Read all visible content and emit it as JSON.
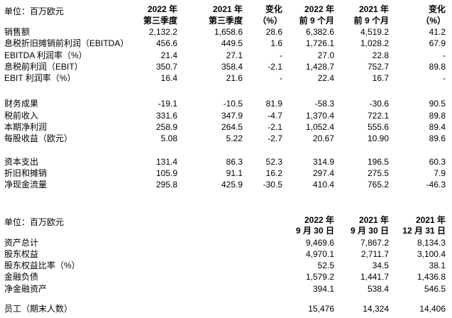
{
  "section1": {
    "unit_label": "单位：百万欧元",
    "headers": [
      "2022 年\n第三季度",
      "2021 年\n第三季度",
      "变化\n（%）",
      "2022 年\n前 9 个月",
      "2021 年\n前 9 个月",
      "变化\n（%）"
    ],
    "rows": [
      {
        "label": "销售额",
        "v": [
          "2,132.2",
          "1,658.6",
          "28.6",
          "6,382.6",
          "4,519.2",
          "41.2"
        ]
      },
      {
        "label": "息税折旧摊销前利润（EBITDA）",
        "v": [
          "456.6",
          "449.5",
          "1.6",
          "1,726.1",
          "1,028.2",
          "67.9"
        ]
      },
      {
        "label": "EBITDA 利润率（%）",
        "v": [
          "21.4",
          "27.1",
          "-",
          "27.0",
          "22.8",
          "-"
        ]
      },
      {
        "label": "息税前利润（EBIT）",
        "v": [
          "350.7",
          "358.4",
          "-2.1",
          "1,428.7",
          "752.7",
          "89.8"
        ]
      },
      {
        "label": "EBIT 利润率（%）",
        "v": [
          "16.4",
          "21.6",
          "-",
          "22.4",
          "16.7",
          "-"
        ]
      },
      {
        "label": "财务成果",
        "v": [
          "-19.1",
          "-10.5",
          "81.9",
          "-58.3",
          "-30.6",
          "90.5"
        ]
      },
      {
        "label": "税前收入",
        "v": [
          "331.6",
          "347.9",
          "-4.7",
          "1,370.4",
          "722.1",
          "89.8"
        ]
      },
      {
        "label": "本期净利润",
        "v": [
          "258.9",
          "264.5",
          "-2.1",
          "1,052.4",
          "555.6",
          "89.4"
        ]
      },
      {
        "label": "每股收益（欧元）",
        "v": [
          "5.08",
          "5.22",
          "-2.7",
          "20.67",
          "10.90",
          "89.6"
        ]
      },
      {
        "label": "资本支出",
        "v": [
          "131.4",
          "86.3",
          "52.3",
          "314.9",
          "196.5",
          "60.3"
        ]
      },
      {
        "label": "折旧和摊销",
        "v": [
          "105.9",
          "91.1",
          "16.2",
          "297.4",
          "275.5",
          "7.9"
        ]
      },
      {
        "label": "净现金流量",
        "v": [
          "295.8",
          "425.9",
          "-30.5",
          "410.4",
          "765.2",
          "-46.3"
        ]
      }
    ]
  },
  "section2": {
    "unit_label": "单位：百万欧元",
    "headers": [
      "2022 年\n9 月 30 日",
      "2021 年\n9 月 30 日",
      "2021 年\n12 月 31 日"
    ],
    "rows": [
      {
        "label": "资产总计",
        "v": [
          "9,469.6",
          "7,867.2",
          "8,134.3"
        ]
      },
      {
        "label": "股东权益",
        "v": [
          "4,970.1",
          "2,711.7",
          "3,100.4"
        ]
      },
      {
        "label": "股东权益比率（%）",
        "v": [
          "52.5",
          "34.5",
          "38.1"
        ]
      },
      {
        "label": "金融负债",
        "v": [
          "1,579.2",
          "1,441.7",
          "1,436.8"
        ]
      },
      {
        "label": "净金融资产",
        "v": [
          "394.1",
          "538.4",
          "546.5"
        ]
      }
    ],
    "employees": {
      "label": "员工（期末人数）",
      "v": [
        "15,476",
        "14,324",
        "14,406"
      ]
    }
  }
}
